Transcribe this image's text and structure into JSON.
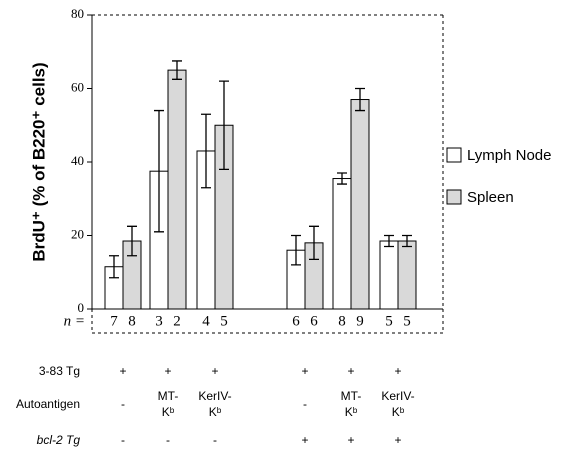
{
  "chart_data": {
    "type": "bar",
    "y_label": "BrdU⁺ (% of B220⁺ cells)",
    "ylim": [
      0,
      80
    ],
    "yticks": [
      0,
      20,
      40,
      60,
      80
    ],
    "series": [
      {
        "name": "Lymph Node",
        "color": "#ffffff",
        "values": [
          11.5,
          37.5,
          43,
          16,
          35.5,
          18.5
        ],
        "errors": [
          3,
          16.5,
          10,
          4,
          1.5,
          1.5
        ],
        "n": [
          7,
          3,
          4,
          6,
          8,
          5
        ]
      },
      {
        "name": "Spleen",
        "color": "#d9d9d9",
        "values": [
          18.5,
          65,
          50,
          18,
          57,
          18.5
        ],
        "errors": [
          4,
          2.5,
          12,
          4.5,
          3,
          1.5
        ],
        "n": [
          8,
          2,
          5,
          6,
          9,
          5
        ]
      }
    ],
    "n_label": "n =",
    "conditions": [
      {
        "label": "3-83  Tg",
        "values": [
          [
            "+"
          ],
          [
            "+"
          ],
          [
            "+"
          ],
          [
            "+"
          ],
          [
            "+"
          ],
          [
            "+"
          ]
        ]
      },
      {
        "label": "Autoantigen",
        "values": [
          [
            "-"
          ],
          [
            "MT-",
            "Kᵇ"
          ],
          [
            "KerIV-",
            "Kᵇ"
          ],
          [
            "-"
          ],
          [
            "MT-",
            "Kᵇ"
          ],
          [
            "KerIV-",
            "Kᵇ"
          ]
        ]
      },
      {
        "label": "bcl-2 Tg",
        "values": [
          [
            "-"
          ],
          [
            "-"
          ],
          [
            "-"
          ],
          [
            "+"
          ],
          [
            "+"
          ],
          [
            "+"
          ]
        ]
      }
    ]
  }
}
